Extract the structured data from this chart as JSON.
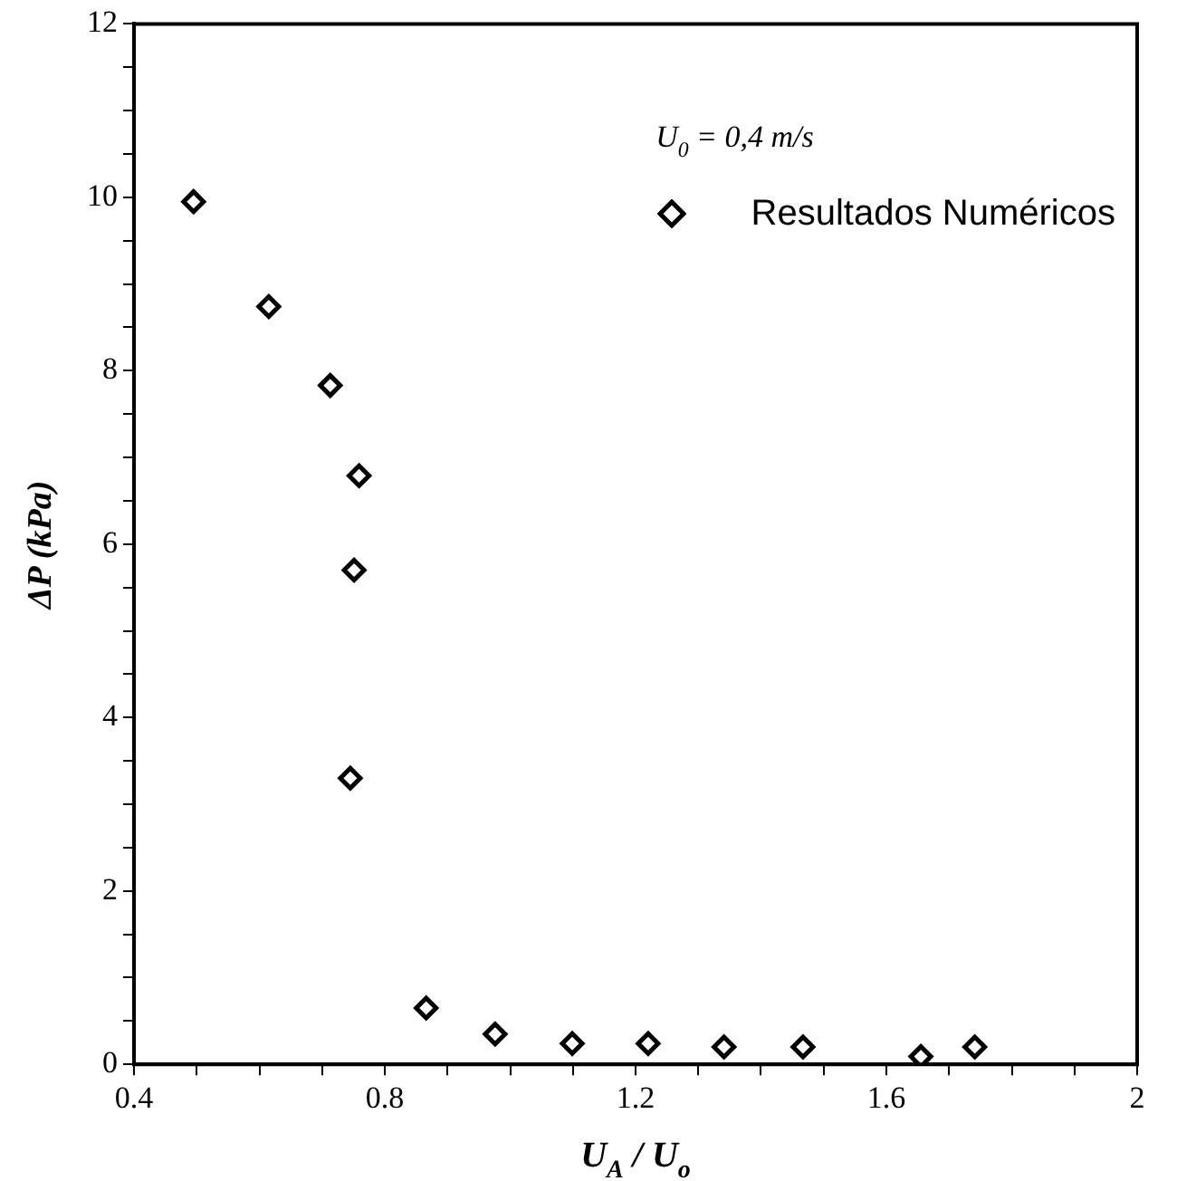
{
  "chart_data": {
    "type": "scatter",
    "xlabel": "U$_{A}$ / U$_{o}$",
    "ylabel": "ΔP (kPa)",
    "annotations": [
      "U$_{0}$ = 0,4 m/s"
    ],
    "x": [
      0.495,
      0.615,
      0.713,
      0.759,
      0.751,
      0.745,
      0.866,
      0.976,
      1.099,
      1.22,
      1.341,
      1.467,
      1.655,
      1.741
    ],
    "series": [
      {
        "name": "Resultados Numéricos",
        "color": "#000000",
        "values": [
          9.95,
          8.74,
          7.83,
          6.79,
          5.7,
          3.3,
          0.65,
          0.35,
          0.24,
          0.24,
          0.2,
          0.2,
          0.09,
          0.2
        ]
      }
    ],
    "xlim": [
      0.4,
      2
    ],
    "ylim": [
      0,
      12
    ],
    "xticks": [
      0.4,
      {
        "value": 0.5,
        "label": null
      },
      {
        "value": 0.6,
        "label": null
      },
      {
        "value": 0.7,
        "label": null
      },
      0.8,
      {
        "value": 0.9,
        "label": null
      },
      {
        "value": 1.0,
        "label": null
      },
      {
        "value": 1.1,
        "label": null
      },
      1.2,
      {
        "value": 1.3,
        "label": null
      },
      {
        "value": 1.4,
        "label": null
      },
      {
        "value": 1.5,
        "label": null
      },
      1.6,
      {
        "value": 1.7,
        "label": null
      },
      {
        "value": 1.8,
        "label": null
      },
      {
        "value": 1.9,
        "label": null
      },
      2
    ],
    "yticks": [
      0,
      {
        "value": 0.5,
        "label": null
      },
      {
        "value": 1,
        "label": null
      },
      {
        "value": 1.5,
        "label": null
      },
      2,
      {
        "value": 2.5,
        "label": null
      },
      {
        "value": 3,
        "label": null
      },
      {
        "value": 3.5,
        "label": null
      },
      4,
      {
        "value": 4.5,
        "label": null
      },
      {
        "value": 5,
        "label": null
      },
      {
        "value": 5.5,
        "label": null
      },
      6,
      {
        "value": 6.5,
        "label": null
      },
      {
        "value": 7,
        "label": null
      },
      {
        "value": 7.5,
        "label": null
      },
      8,
      {
        "value": 8.5,
        "label": null
      },
      {
        "value": 9,
        "label": null
      },
      {
        "value": 9.5,
        "label": null
      },
      10,
      {
        "value": 10.5,
        "label": null
      },
      {
        "value": 11,
        "label": null
      },
      {
        "value": 11.5,
        "label": null
      },
      12
    ],
    "grid": false,
    "legend": "top right",
    "marker": "diamond"
  }
}
